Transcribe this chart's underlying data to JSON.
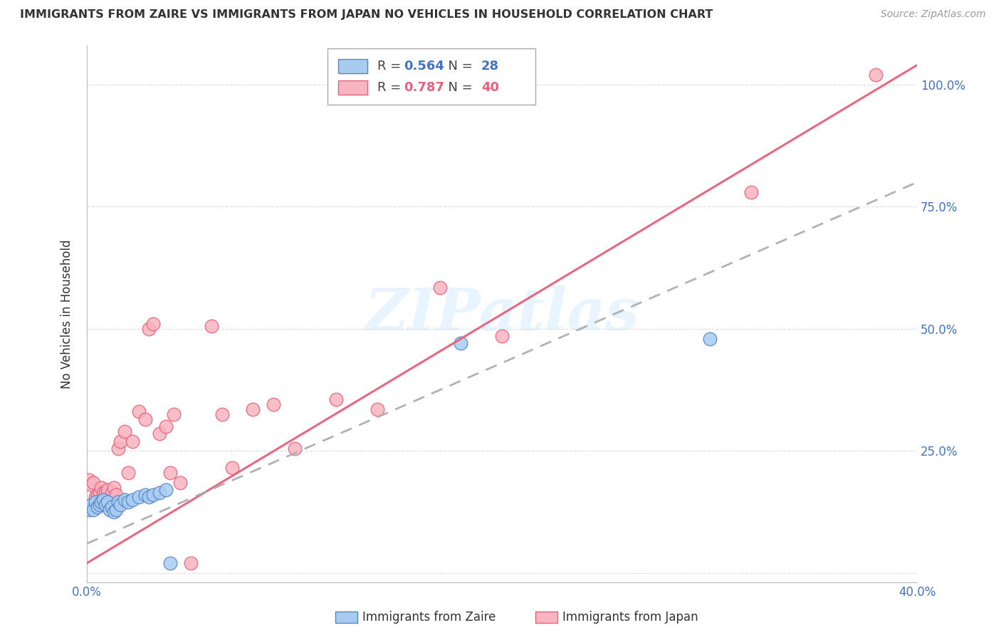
{
  "title": "IMMIGRANTS FROM ZAIRE VS IMMIGRANTS FROM JAPAN NO VEHICLES IN HOUSEHOLD CORRELATION CHART",
  "source": "Source: ZipAtlas.com",
  "ylabel": "No Vehicles in Household",
  "xlim": [
    0.0,
    0.4
  ],
  "ylim": [
    -0.02,
    1.08
  ],
  "zaire_R": 0.564,
  "zaire_N": 28,
  "japan_R": 0.787,
  "japan_N": 40,
  "zaire_color": "#A8CCF0",
  "japan_color": "#F8B4C0",
  "zaire_line_color": "#5585C8",
  "japan_line_color": "#E8607A",
  "watermark": "ZIPatlas",
  "zaire_x": [
    0.001,
    0.002,
    0.003,
    0.004,
    0.005,
    0.006,
    0.007,
    0.008,
    0.009,
    0.01,
    0.011,
    0.012,
    0.013,
    0.014,
    0.015,
    0.016,
    0.018,
    0.02,
    0.022,
    0.025,
    0.028,
    0.03,
    0.032,
    0.035,
    0.038,
    0.04,
    0.18,
    0.3
  ],
  "zaire_y": [
    0.13,
    0.14,
    0.13,
    0.145,
    0.135,
    0.14,
    0.145,
    0.15,
    0.14,
    0.145,
    0.13,
    0.135,
    0.125,
    0.13,
    0.145,
    0.14,
    0.15,
    0.145,
    0.15,
    0.155,
    0.16,
    0.155,
    0.16,
    0.165,
    0.17,
    0.02,
    0.47,
    0.48
  ],
  "japan_x": [
    0.001,
    0.002,
    0.003,
    0.004,
    0.005,
    0.006,
    0.007,
    0.008,
    0.009,
    0.01,
    0.012,
    0.013,
    0.014,
    0.015,
    0.016,
    0.018,
    0.02,
    0.022,
    0.025,
    0.028,
    0.03,
    0.032,
    0.035,
    0.038,
    0.04,
    0.042,
    0.045,
    0.05,
    0.06,
    0.065,
    0.07,
    0.08,
    0.09,
    0.1,
    0.12,
    0.14,
    0.17,
    0.2,
    0.32,
    0.38
  ],
  "japan_y": [
    0.19,
    0.18,
    0.185,
    0.155,
    0.16,
    0.165,
    0.175,
    0.165,
    0.165,
    0.17,
    0.165,
    0.175,
    0.16,
    0.255,
    0.27,
    0.29,
    0.205,
    0.27,
    0.33,
    0.315,
    0.5,
    0.51,
    0.285,
    0.3,
    0.205,
    0.325,
    0.185,
    0.02,
    0.505,
    0.325,
    0.215,
    0.335,
    0.345,
    0.255,
    0.355,
    0.335,
    0.585,
    0.485,
    0.78,
    1.02
  ],
  "grid_color": "#DDDDDD",
  "background_color": "#FFFFFF",
  "xtick_positions": [
    0.0,
    0.1,
    0.2,
    0.3,
    0.4
  ],
  "ytick_positions": [
    0.0,
    0.25,
    0.5,
    0.75,
    1.0
  ],
  "right_ytick_labels": [
    "",
    "25.0%",
    "50.0%",
    "75.0%",
    "100.0%"
  ],
  "x_visible_labels": {
    "0.0": "0.0%",
    "0.4": "40.0%"
  },
  "zaire_line_intercept": 0.06,
  "zaire_line_slope": 1.85,
  "japan_line_intercept": 0.02,
  "japan_line_slope": 2.55
}
